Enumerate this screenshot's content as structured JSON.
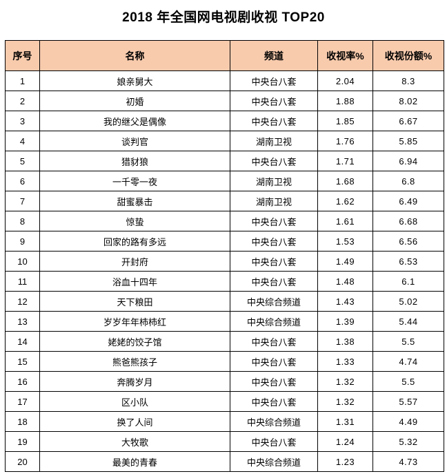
{
  "title": "2018 年全国网电视剧收视 TOP20",
  "colors": {
    "header_bg": "#F8CBAD",
    "border": "#000000",
    "text": "#000000",
    "background": "#FFFFFF"
  },
  "chart_data": {
    "type": "table",
    "title": "2018 年全国网电视剧收视 TOP20",
    "columns": [
      "序号",
      "名称",
      "频道",
      "收视率%",
      "收视份额%"
    ],
    "rows": [
      [
        "1",
        "娘亲舅大",
        "中央台八套",
        "2.04",
        "8.3"
      ],
      [
        "2",
        "初婚",
        "中央台八套",
        "1.88",
        "8.02"
      ],
      [
        "3",
        "我的继父是偶像",
        "中央台八套",
        "1.85",
        "6.67"
      ],
      [
        "4",
        "谈判官",
        "湖南卫视",
        "1.76",
        "5.85"
      ],
      [
        "5",
        "猎豺狼",
        "中央台八套",
        "1.71",
        "6.94"
      ],
      [
        "6",
        "一千零一夜",
        "湖南卫视",
        "1.68",
        "6.8"
      ],
      [
        "7",
        "甜蜜暴击",
        "湖南卫视",
        "1.62",
        "6.49"
      ],
      [
        "8",
        "惊蛰",
        "中央台八套",
        "1.61",
        "6.68"
      ],
      [
        "9",
        "回家的路有多远",
        "中央台八套",
        "1.53",
        "6.56"
      ],
      [
        "10",
        "开封府",
        "中央台八套",
        "1.49",
        "6.53"
      ],
      [
        "11",
        "浴血十四年",
        "中央台八套",
        "1.48",
        "6.1"
      ],
      [
        "12",
        "天下粮田",
        "中央综合频道",
        "1.43",
        "5.02"
      ],
      [
        "13",
        "岁岁年年柿柿红",
        "中央综合频道",
        "1.39",
        "5.44"
      ],
      [
        "14",
        "姥姥的饺子馆",
        "中央台八套",
        "1.38",
        "5.5"
      ],
      [
        "15",
        "熊爸熊孩子",
        "中央台八套",
        "1.33",
        "4.74"
      ],
      [
        "16",
        "奔腾岁月",
        "中央台八套",
        "1.32",
        "5.5"
      ],
      [
        "17",
        "区小队",
        "中央台八套",
        "1.32",
        "5.57"
      ],
      [
        "18",
        "换了人间",
        "中央综合频道",
        "1.31",
        "4.49"
      ],
      [
        "19",
        "大牧歌",
        "中央台八套",
        "1.24",
        "5.32"
      ],
      [
        "20",
        "最美的青春",
        "中央综合频道",
        "1.23",
        "4.73"
      ]
    ]
  }
}
